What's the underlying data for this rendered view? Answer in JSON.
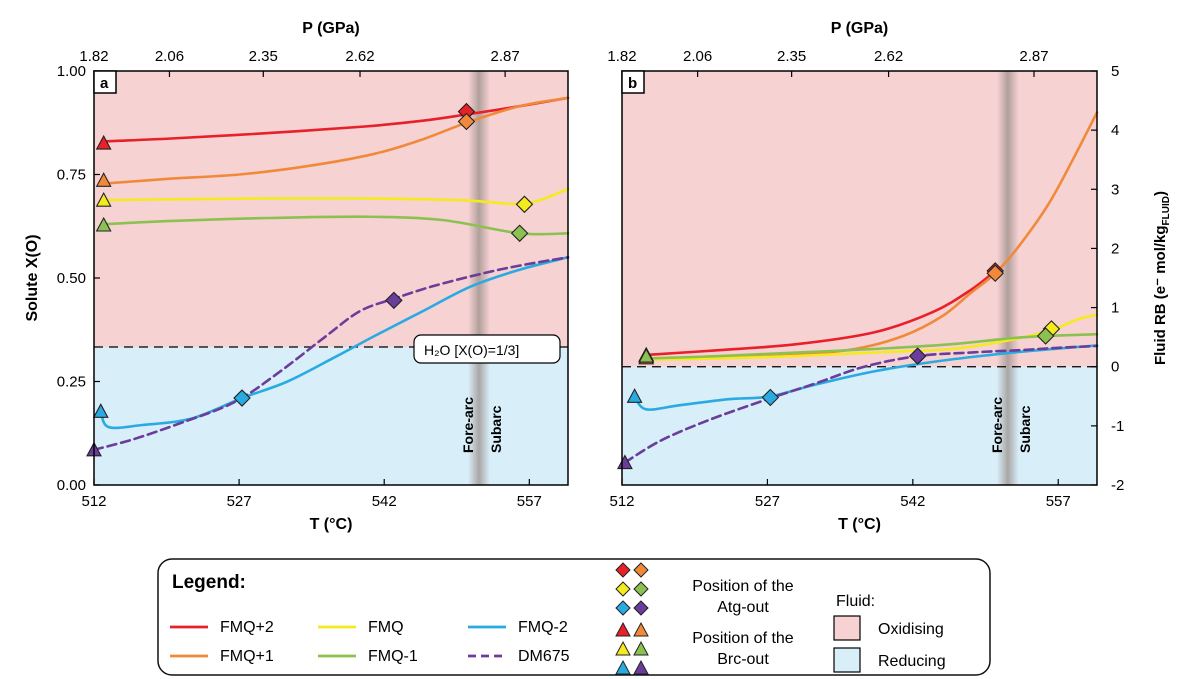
{
  "colors": {
    "FMQ+2": "#e8202a",
    "FMQ+1": "#f08a3a",
    "FMQ": "#f4ea1e",
    "FMQ-1": "#8cc152",
    "FMQ-2": "#29abe2",
    "DM675": "#6a3d9a",
    "oxidising": "#f7d2d3",
    "reducing": "#d8eef9",
    "band": "#9a8f8a"
  },
  "panels": {
    "a": {
      "letter": "a",
      "ylabel": "Solute X(O)"
    },
    "b": {
      "letter": "b",
      "ylabel": "Fluid RB (e⁻ mol/kg",
      "ylabel_sub": "FLUID",
      "ylabel_end": ")"
    }
  },
  "water_label": "H₂O [X(O)=1/3]",
  "zone_labels": {
    "forearc": "Fore-arc",
    "subarc": "Subarc"
  },
  "legend": {
    "title": "Legend:",
    "series": [
      "FMQ+2",
      "FMQ",
      "FMQ-2",
      "FMQ+1",
      "FMQ-1",
      "DM675"
    ],
    "atg_label_1": "Position of the",
    "atg_label_2": "Atg-out",
    "brc_label_1": "Position of the",
    "brc_label_2": "Brc-out",
    "fluid_title": "Fluid:",
    "oxidising": "Oxidising",
    "reducing": "Reducing"
  },
  "chart_data": [
    {
      "type": "line",
      "panel": "a",
      "xlabel": "T (°C)",
      "x2label": "P (GPa)",
      "ylabel": "Solute X(O)",
      "xlim": [
        512,
        561
      ],
      "ylim": [
        0,
        1
      ],
      "x_ticks": [
        512,
        527,
        542,
        557
      ],
      "y_ticks": [
        0.0,
        0.25,
        0.5,
        0.75,
        1.0
      ],
      "y_tick_labels": [
        "0.00",
        "0.25",
        "0.50",
        "0.75",
        "1.00"
      ],
      "x2_ticks": [
        512,
        519.8,
        529.5,
        539.5,
        554.5
      ],
      "x2_tick_labels": [
        "1.82",
        "2.06",
        "2.35",
        "2.62",
        "2.87"
      ],
      "reference_line": {
        "y": 0.3333,
        "label": "H₂O [X(O)=1/3]"
      },
      "band_x": 551.8,
      "series": [
        {
          "name": "FMQ+2",
          "dashed": false,
          "x": [
            513,
            520,
            530,
            540,
            546,
            550.5,
            556,
            561
          ],
          "y": [
            0.83,
            0.837,
            0.85,
            0.866,
            0.88,
            0.895,
            0.915,
            0.935
          ],
          "atg": [
            550.5,
            0.902
          ],
          "brc": [
            513,
            0.826
          ]
        },
        {
          "name": "FMQ+1",
          "dashed": false,
          "x": [
            513,
            520,
            527,
            534,
            541,
            546,
            550.5,
            556,
            561
          ],
          "y": [
            0.728,
            0.74,
            0.75,
            0.77,
            0.8,
            0.835,
            0.875,
            0.915,
            0.935
          ],
          "atg": [
            550.5,
            0.878
          ],
          "brc": [
            513,
            0.736
          ]
        },
        {
          "name": "FMQ",
          "dashed": false,
          "x": [
            513,
            520,
            530,
            540,
            550,
            556.5,
            561
          ],
          "y": [
            0.688,
            0.69,
            0.692,
            0.692,
            0.688,
            0.68,
            0.715
          ],
          "atg": [
            556.5,
            0.678
          ],
          "brc": [
            513,
            0.688
          ]
        },
        {
          "name": "FMQ-1",
          "dashed": false,
          "x": [
            513,
            520,
            530,
            540,
            548,
            556,
            561
          ],
          "y": [
            0.63,
            0.638,
            0.645,
            0.648,
            0.64,
            0.608,
            0.608
          ],
          "atg": [
            556,
            0.608
          ],
          "brc": [
            513,
            0.628
          ]
        },
        {
          "name": "FMQ-2",
          "dashed": false,
          "x": [
            512.7,
            513.5,
            517,
            522,
            527.3,
            532,
            537,
            541,
            546,
            551,
            556,
            561
          ],
          "y": [
            0.18,
            0.14,
            0.145,
            0.16,
            0.21,
            0.25,
            0.31,
            0.36,
            0.42,
            0.48,
            0.52,
            0.55
          ],
          "atg": [
            527.3,
            0.21
          ],
          "brc": [
            512.7,
            0.178
          ]
        },
        {
          "name": "DM675",
          "dashed": true,
          "x": [
            512,
            516,
            521,
            526.5,
            531,
            536,
            539.5,
            543,
            547,
            552,
            556,
            561
          ],
          "y": [
            0.085,
            0.11,
            0.15,
            0.2,
            0.27,
            0.36,
            0.42,
            0.45,
            0.48,
            0.51,
            0.53,
            0.55
          ],
          "atg": [
            543,
            0.446
          ],
          "brc": [
            512,
            0.085
          ]
        }
      ]
    },
    {
      "type": "line",
      "panel": "b",
      "xlabel": "T (°C)",
      "x2label": "P (GPa)",
      "ylabel": "Fluid RB (e⁻ mol/kgFLUID)",
      "xlim": [
        512,
        561
      ],
      "ylim": [
        -2,
        5
      ],
      "x_ticks": [
        512,
        527,
        542,
        557
      ],
      "y_ticks": [
        -2,
        -1,
        0,
        1,
        2,
        3,
        4,
        5
      ],
      "x2_ticks": [
        512,
        519.8,
        529.5,
        539.5,
        554.5
      ],
      "x2_tick_labels": [
        "1.82",
        "2.06",
        "2.35",
        "2.62",
        "2.87"
      ],
      "reference_line": {
        "y": 0
      },
      "band_x": 551.8,
      "series": [
        {
          "name": "FMQ+2",
          "dashed": false,
          "x": [
            514.5,
            522,
            530,
            538,
            544,
            548,
            550.5
          ],
          "y": [
            0.2,
            0.28,
            0.38,
            0.58,
            0.92,
            1.3,
            1.62
          ],
          "atg": [
            550.5,
            1.62
          ],
          "brc": [
            514.5,
            0.2
          ]
        },
        {
          "name": "FMQ+1",
          "dashed": false,
          "x": [
            514.5,
            522,
            530,
            536,
            541,
            545,
            548,
            550.5,
            553,
            556,
            558.5,
            561
          ],
          "y": [
            0.12,
            0.15,
            0.2,
            0.3,
            0.52,
            0.85,
            1.25,
            1.58,
            2.05,
            2.75,
            3.5,
            4.3
          ],
          "atg": [
            550.5,
            1.58
          ],
          "brc": [
            514.5,
            0.15
          ]
        },
        {
          "name": "FMQ",
          "dashed": false,
          "x": [
            514.5,
            522,
            530,
            538,
            546,
            552,
            556.3,
            559,
            561
          ],
          "y": [
            0.12,
            0.14,
            0.18,
            0.24,
            0.3,
            0.45,
            0.62,
            0.8,
            0.88
          ],
          "atg": [
            556.3,
            0.64
          ],
          "brc": [
            514.5,
            0.18
          ]
        },
        {
          "name": "FMQ-1",
          "dashed": false,
          "x": [
            514.5,
            522,
            530,
            538,
            546,
            552,
            555.7,
            561
          ],
          "y": [
            0.14,
            0.18,
            0.24,
            0.3,
            0.38,
            0.48,
            0.52,
            0.55
          ],
          "atg": [
            555.7,
            0.52
          ],
          "brc": [
            514.5,
            0.18
          ]
        },
        {
          "name": "FMQ-2",
          "dashed": false,
          "x": [
            513.3,
            514.5,
            518,
            523,
            527.3,
            532,
            538,
            544,
            550,
            555,
            561
          ],
          "y": [
            -0.5,
            -0.72,
            -0.65,
            -0.55,
            -0.5,
            -0.3,
            -0.08,
            0.08,
            0.2,
            0.28,
            0.36
          ],
          "atg": [
            527.3,
            -0.52
          ],
          "brc": [
            513.3,
            -0.5
          ]
        },
        {
          "name": "DM675",
          "dashed": true,
          "x": [
            512.3,
            516,
            521,
            527,
            532,
            537,
            542.5,
            548,
            553,
            557,
            561
          ],
          "y": [
            -1.62,
            -1.25,
            -0.9,
            -0.55,
            -0.28,
            0.0,
            0.18,
            0.24,
            0.28,
            0.32,
            0.35
          ],
          "atg": [
            542.5,
            0.18
          ],
          "brc": [
            512.3,
            -1.62
          ]
        }
      ]
    }
  ]
}
